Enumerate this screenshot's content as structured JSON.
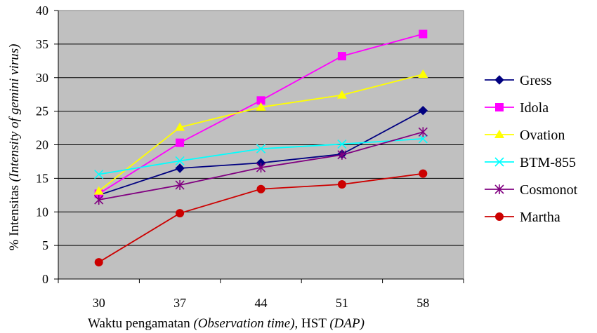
{
  "chart_data": {
    "type": "line",
    "title": "",
    "xlabel": {
      "main": "Waktu pengamatan ",
      "italic1": "(Observation time)",
      "mid": ", HST ",
      "italic2": "(DAP)"
    },
    "ylabel": {
      "main": "% Intensitas ",
      "italic": "(Intensity of gemini virus)"
    },
    "categories": [
      "30",
      "37",
      "44",
      "51",
      "58"
    ],
    "ylim": [
      0,
      40
    ],
    "yticks": [
      0,
      5,
      10,
      15,
      20,
      25,
      30,
      35,
      40
    ],
    "grid": "horizontal",
    "plot_background": "#c0c0c0",
    "legend_position": "right",
    "series": [
      {
        "name": "Gress",
        "color": "#000080",
        "marker": "diamond",
        "values": [
          12.5,
          16.5,
          17.3,
          18.6,
          25.1
        ]
      },
      {
        "name": "Idola",
        "color": "#ff00ff",
        "marker": "square",
        "values": [
          12.7,
          20.3,
          26.6,
          33.2,
          36.5
        ]
      },
      {
        "name": "Ovation",
        "color": "#ffff00",
        "marker": "triangle",
        "values": [
          13.1,
          22.6,
          25.6,
          27.4,
          30.5
        ]
      },
      {
        "name": "BTM-855",
        "color": "#00ffff",
        "marker": "x",
        "values": [
          15.6,
          17.6,
          19.4,
          20.1,
          20.9
        ]
      },
      {
        "name": "Cosmonot",
        "color": "#800080",
        "marker": "star",
        "values": [
          11.8,
          14.0,
          16.6,
          18.5,
          21.9
        ]
      },
      {
        "name": "Martha",
        "color": "#cc0000",
        "marker": "circle",
        "values": [
          2.5,
          9.8,
          13.4,
          14.1,
          15.7
        ]
      }
    ]
  }
}
